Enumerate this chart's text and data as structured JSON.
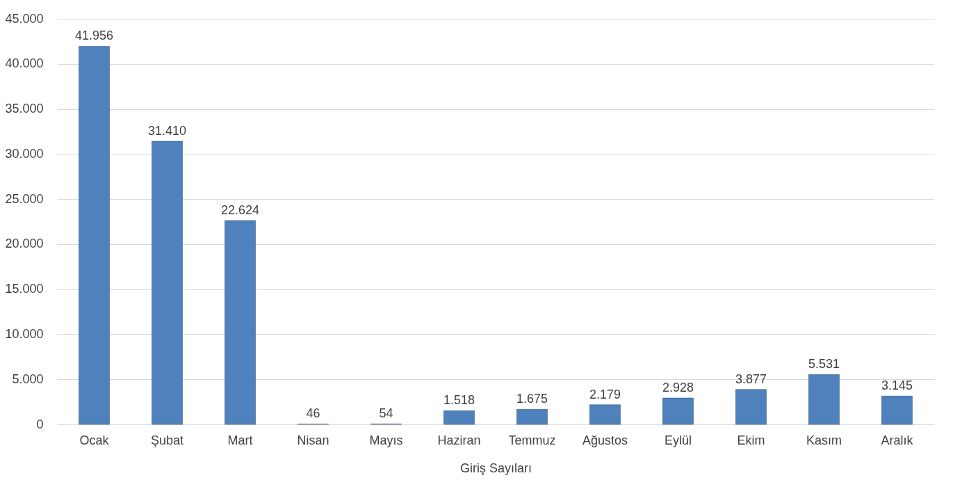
{
  "chart_data": {
    "type": "bar",
    "xlabel": "Giriş Sayıları",
    "categories": [
      "Ocak",
      "Şubat",
      "Mart",
      "Nisan",
      "Mayıs",
      "Haziran",
      "Temmuz",
      "Ağustos",
      "Eylül",
      "Ekim",
      "Kasım",
      "Aralık"
    ],
    "values": [
      41956,
      31410,
      22624,
      46,
      54,
      1518,
      1675,
      2179,
      2928,
      3877,
      5531,
      3145
    ],
    "value_labels": [
      "41.956",
      "31.410",
      "22.624",
      "46",
      "54",
      "1.518",
      "1.675",
      "2.179",
      "2.928",
      "3.877",
      "5.531",
      "3.145"
    ],
    "color": "#4f81bd",
    "ylim": [
      0,
      45000
    ],
    "yticks": [
      0,
      {
        "value": 5000,
        "label": "5.000"
      },
      {
        "value": 10000,
        "label": "10.000"
      },
      {
        "value": 15000,
        "label": "15.000"
      },
      {
        "value": 20000,
        "label": "20.000"
      },
      {
        "value": 25000,
        "label": "25.000"
      },
      {
        "value": 30000,
        "label": "30.000"
      },
      {
        "value": 35000,
        "label": "35.000"
      },
      {
        "value": 40000,
        "label": "40.000"
      },
      {
        "value": 45000,
        "label": "45.000"
      }
    ],
    "grid": "y"
  }
}
